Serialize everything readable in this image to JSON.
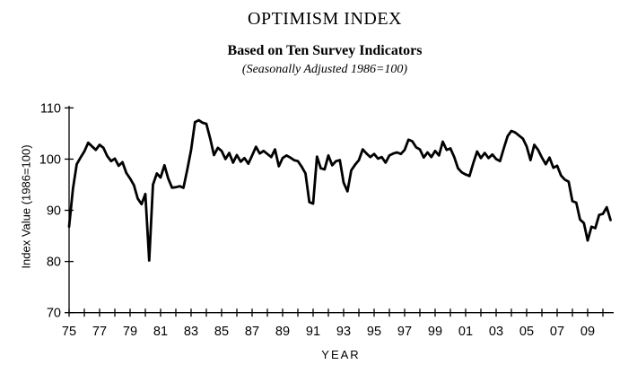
{
  "header": {
    "title": "OPTIMISM INDEX",
    "subtitle": "Based on Ten Survey Indicators",
    "note": "(Seasonally Adjusted 1986=100)"
  },
  "chart_data": {
    "type": "line",
    "title": "OPTIMISM INDEX",
    "subtitle": "Based on Ten Survey Indicators",
    "note": "(Seasonally Adjusted 1986=100)",
    "xlabel": "YEAR",
    "ylabel": "Index Value (1986=100)",
    "xlim": [
      1975,
      2010.5
    ],
    "ylim": [
      70,
      110
    ],
    "grid": false,
    "legend": "none",
    "frequency": "quarterly",
    "line_color": "#000000",
    "background": "#ffffff",
    "y_ticks": [
      70,
      80,
      90,
      100,
      110
    ],
    "x_minor_ticks": [
      1975,
      1976,
      1977,
      1978,
      1979,
      1980,
      1981,
      1982,
      1983,
      1984,
      1985,
      1986,
      1987,
      1988,
      1989,
      1990,
      1991,
      1992,
      1993,
      1994,
      1995,
      1996,
      1997,
      1998,
      1999,
      2000,
      2001,
      2002,
      2003,
      2004,
      2005,
      2006,
      2007,
      2008,
      2009,
      2010
    ],
    "x_tick_labels": [
      "75",
      "77",
      "79",
      "81",
      "83",
      "85",
      "87",
      "89",
      "91",
      "93",
      "95",
      "97",
      "99",
      "01",
      "03",
      "05",
      "07",
      "09"
    ],
    "x_tick_label_years": [
      1975,
      1977,
      1979,
      1981,
      1983,
      1985,
      1987,
      1989,
      1991,
      1993,
      1995,
      1997,
      1999,
      2001,
      2003,
      2005,
      2007,
      2009
    ],
    "x": [
      1975,
      1975.25,
      1975.5,
      1975.75,
      1976,
      1976.25,
      1976.5,
      1976.75,
      1977,
      1977.25,
      1977.5,
      1977.75,
      1978,
      1978.25,
      1978.5,
      1978.75,
      1979,
      1979.25,
      1979.5,
      1979.75,
      1980,
      1980.25,
      1980.5,
      1980.75,
      1981,
      1981.25,
      1981.5,
      1981.75,
      1982,
      1982.25,
      1982.5,
      1982.75,
      1983,
      1983.25,
      1983.5,
      1983.75,
      1984,
      1984.25,
      1984.5,
      1984.75,
      1985,
      1985.25,
      1985.5,
      1985.75,
      1986,
      1986.25,
      1986.5,
      1986.75,
      1987,
      1987.25,
      1987.5,
      1987.75,
      1988,
      1988.25,
      1988.5,
      1988.75,
      1989,
      1989.25,
      1989.5,
      1989.75,
      1990,
      1990.25,
      1990.5,
      1990.75,
      1991,
      1991.25,
      1991.5,
      1991.75,
      1992,
      1992.25,
      1992.5,
      1992.75,
      1993,
      1993.25,
      1993.5,
      1993.75,
      1994,
      1994.25,
      1994.5,
      1994.75,
      1995,
      1995.25,
      1995.5,
      1995.75,
      1996,
      1996.25,
      1996.5,
      1996.75,
      1997,
      1997.25,
      1997.5,
      1997.75,
      1998,
      1998.25,
      1998.5,
      1998.75,
      1999,
      1999.25,
      1999.5,
      1999.75,
      2000,
      2000.25,
      2000.5,
      2000.75,
      2001,
      2001.25,
      2001.5,
      2001.75,
      2002,
      2002.25,
      2002.5,
      2002.75,
      2003,
      2003.25,
      2003.5,
      2003.75,
      2004,
      2004.25,
      2004.5,
      2004.75,
      2005,
      2005.25,
      2005.5,
      2005.75,
      2006,
      2006.25,
      2006.5,
      2006.75,
      2007,
      2007.25,
      2007.5,
      2007.75,
      2008,
      2008.25,
      2008.5,
      2008.75,
      2009,
      2009.25,
      2009.5,
      2009.75,
      2010,
      2010.25,
      2010.5
    ],
    "values": [
      86.8,
      94.2,
      99.0,
      100.3,
      101.5,
      103.2,
      102.5,
      101.8,
      102.8,
      102.2,
      100.6,
      99.6,
      100.1,
      98.7,
      99.4,
      97.3,
      96.2,
      94.9,
      92.3,
      91.2,
      93.2,
      80.2,
      95.0,
      97.2,
      96.4,
      98.8,
      96.2,
      94.4,
      94.5,
      94.7,
      94.4,
      98.0,
      101.8,
      107.2,
      107.6,
      107.1,
      106.9,
      104.0,
      100.8,
      102.2,
      101.6,
      100.0,
      101.2,
      99.3,
      100.8,
      99.5,
      100.2,
      99.1,
      100.7,
      102.4,
      101.1,
      101.6,
      101.0,
      100.4,
      101.9,
      98.6,
      100.2,
      100.7,
      100.3,
      99.8,
      99.6,
      98.5,
      97.2,
      91.6,
      91.3,
      100.5,
      98.2,
      98.0,
      100.7,
      98.8,
      99.6,
      99.8,
      95.4,
      93.7,
      97.8,
      98.9,
      99.8,
      101.9,
      101.1,
      100.4,
      101.0,
      100.1,
      100.4,
      99.3,
      100.7,
      101.1,
      101.3,
      101.0,
      101.8,
      103.8,
      103.5,
      102.3,
      101.9,
      100.3,
      101.3,
      100.4,
      101.6,
      100.7,
      103.4,
      101.8,
      102.1,
      100.4,
      98.2,
      97.4,
      97.0,
      96.7,
      99.2,
      101.5,
      100.2,
      101.2,
      100.2,
      100.9,
      100.0,
      99.6,
      102.1,
      104.5,
      105.5,
      105.2,
      104.6,
      104.0,
      102.5,
      99.8,
      102.8,
      101.8,
      100.3,
      99.0,
      100.3,
      98.3,
      98.7,
      96.8,
      96.0,
      95.6,
      91.8,
      91.5,
      88.2,
      87.5,
      84.1,
      86.8,
      86.5,
      89.1,
      89.3,
      90.6,
      88.1
    ]
  }
}
